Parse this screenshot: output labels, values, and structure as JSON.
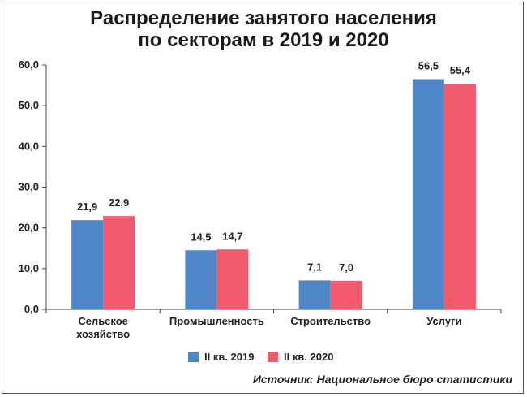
{
  "chart_data": {
    "type": "bar",
    "title_line1": "Распределение занятого населения",
    "title_line2": "по секторам в 2019 и 2020",
    "categories": [
      "Сельское\nхозяйство",
      "Промышленность",
      "Строительство",
      "Услуги"
    ],
    "series": [
      {
        "name": "II кв. 2019",
        "values": [
          21.9,
          14.5,
          7.1,
          56.5
        ],
        "labels": [
          "21,9",
          "14,5",
          "7,1",
          "56,5"
        ],
        "color": "#4f86c6"
      },
      {
        "name": "II кв. 2020",
        "values": [
          22.9,
          14.7,
          7.0,
          55.4
        ],
        "labels": [
          "22,9",
          "14,7",
          "7,0",
          "55,4"
        ],
        "color": "#f05a6c"
      }
    ],
    "ylim": [
      0,
      60
    ],
    "yticks": [
      0,
      10,
      20,
      30,
      40,
      50,
      60
    ],
    "ytick_labels": [
      "0,0",
      "10,0",
      "20,0",
      "30,0",
      "40,0",
      "50,0",
      "60,0"
    ],
    "grid": false,
    "legend_position": "bottom"
  },
  "source": "Источник: Национальное бюро статистики"
}
